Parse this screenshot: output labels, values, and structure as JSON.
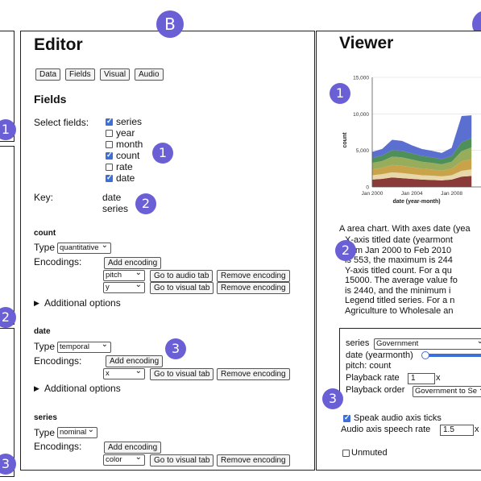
{
  "labels": {
    "b": "B",
    "one": "1",
    "two": "2",
    "three": "3"
  },
  "editor": {
    "title": "Editor",
    "tabs": [
      "Data",
      "Fields",
      "Visual",
      "Audio"
    ],
    "fields_heading": "Fields",
    "select_fields_label": "Select fields:",
    "fields": [
      {
        "label": "series",
        "checked": true
      },
      {
        "label": "year",
        "checked": false
      },
      {
        "label": "month",
        "checked": false
      },
      {
        "label": "count",
        "checked": true
      },
      {
        "label": "rate",
        "checked": false
      },
      {
        "label": "date",
        "checked": true
      }
    ],
    "key_label": "Key:",
    "key_values": [
      "date",
      "series"
    ],
    "type_label": "Type",
    "encodings_label": "Encodings:",
    "add_encoding": "Add encoding",
    "go_audio": "Go to audio tab",
    "go_visual": "Go to visual tab",
    "remove_encoding": "Remove encoding",
    "additional_options": "Additional options",
    "count_section": {
      "name": "count",
      "type": "quantitative",
      "encodings": [
        "pitch",
        "y"
      ]
    },
    "date_section": {
      "name": "date",
      "type": "temporal",
      "encodings": [
        "x"
      ]
    },
    "series_section": {
      "name": "series",
      "type": "nominal",
      "encodings": [
        "color"
      ]
    }
  },
  "viewer": {
    "title": "Viewer",
    "description_lines": [
      "A area chart. With axes date (yea",
      "X-axis titled date (yearmont",
      "from Jan 2000 to Feb 2010",
      "is 553, the maximum is 244",
      "Y-axis titled count. For a qu",
      "15000. The average value fo",
      "is 2440, and the minimum i",
      "Legend titled series. For a n",
      "Agriculture to Wholesale an"
    ],
    "series_label": "series",
    "series_value": "Government",
    "date_label": "date (yearmonth)",
    "pitch_text": "pitch: count",
    "playback_rate_label": "Playback rate",
    "playback_rate_value": "1",
    "playback_rate_unit": "x",
    "playback_order_label": "Playback order",
    "playback_order_value": "Government to Se",
    "speak_ticks_label": "Speak audio axis ticks",
    "speech_rate_label": "Audio axis speech rate",
    "speech_rate_value": "1.5",
    "speech_rate_unit": "x",
    "unmuted_label": "Unmuted"
  },
  "chart_data": {
    "type": "area",
    "xlabel": "date (year-month)",
    "ylabel": "count",
    "y_ticks": [
      "0",
      "5,000",
      "10,000",
      "15,000"
    ],
    "x_ticks": [
      "Jan 2000",
      "Jan 2004",
      "Jan 2008"
    ],
    "ylim": [
      0,
      15000
    ],
    "x": [
      2000,
      2001,
      2002,
      2003,
      2004,
      2005,
      2006,
      2007,
      2008,
      2009,
      2010
    ],
    "series": [
      {
        "color": "#8b3a3a",
        "values": [
          1000,
          1100,
          1300,
          1200,
          1100,
          1000,
          950,
          900,
          1000,
          1400,
          1500
        ]
      },
      {
        "color": "#e8d7a8",
        "values": [
          600,
          650,
          700,
          700,
          650,
          600,
          600,
          550,
          600,
          800,
          900
        ]
      },
      {
        "color": "#c9a34a",
        "values": [
          800,
          850,
          1000,
          1000,
          950,
          900,
          850,
          800,
          900,
          1300,
          1400
        ]
      },
      {
        "color": "#98ad5c",
        "values": [
          900,
          950,
          1150,
          1150,
          1050,
          950,
          900,
          850,
          950,
          1400,
          1600
        ]
      },
      {
        "color": "#4f8f5a",
        "values": [
          700,
          750,
          900,
          900,
          850,
          800,
          750,
          700,
          800,
          1200,
          1300
        ]
      },
      {
        "color": "#5a6fd0",
        "values": [
          800,
          900,
          1400,
          1350,
          1100,
          950,
          900,
          850,
          1100,
          3600,
          3100
        ]
      }
    ]
  }
}
